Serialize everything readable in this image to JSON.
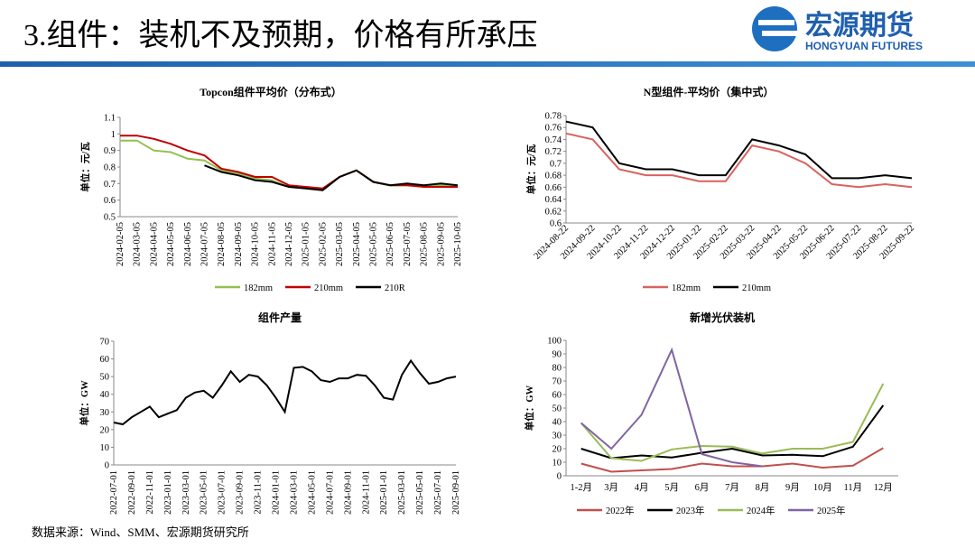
{
  "header": {
    "title": "3.组件：装机不及预期，价格有所承压",
    "logo_cn": "宏源期货",
    "logo_en": "HONGYUAN FUTURES"
  },
  "footer": {
    "source": "数据来源：Wind、SMM、宏源期货研究所"
  },
  "chart_data": [
    {
      "type": "line",
      "title": "Topcon组件平均价（分布式）",
      "y_label": "单位：元/瓦",
      "categories": [
        "2024-02-05",
        "2024-03-05",
        "2024-04-05",
        "2024-05-05",
        "2024-06-05",
        "2024-07-05",
        "2024-08-05",
        "2024-09-05",
        "2024-10-05",
        "2024-11-05",
        "2024-12-05",
        "2025-01-05",
        "2025-02-05",
        "2025-03-05",
        "2025-04-05",
        "2025-05-05",
        "2025-06-05",
        "2025-07-05",
        "2025-08-05",
        "2025-09-05",
        "2025-10-05"
      ],
      "series": [
        {
          "name": "182mm",
          "color": "#92c050",
          "values": [
            0.96,
            0.96,
            0.9,
            0.89,
            0.85,
            0.84,
            0.78,
            0.76,
            0.73,
            0.72,
            0.68,
            0.68,
            0.66,
            0.74,
            0.78,
            0.71,
            0.69,
            0.69,
            0.69,
            0.69,
            0.68
          ]
        },
        {
          "name": "210mm",
          "color": "#c00000",
          "values": [
            0.99,
            0.99,
            0.97,
            0.94,
            0.9,
            0.87,
            0.79,
            0.77,
            0.74,
            0.74,
            0.69,
            0.68,
            0.67,
            0.74,
            0.78,
            0.71,
            0.69,
            0.69,
            0.68,
            0.68,
            0.68
          ]
        },
        {
          "name": "210R",
          "color": "#000000",
          "values": [
            null,
            null,
            null,
            null,
            null,
            0.81,
            0.77,
            0.75,
            0.72,
            0.71,
            0.68,
            0.67,
            0.66,
            0.74,
            0.78,
            0.71,
            0.69,
            0.7,
            0.69,
            0.7,
            0.69
          ]
        }
      ],
      "ylim": [
        0.5,
        1.1
      ],
      "yticks": [
        0.5,
        0.6,
        0.7,
        0.8,
        0.9,
        1,
        1.1
      ],
      "legend": "bottom"
    },
    {
      "type": "line",
      "title": "N型组件-平均价（集中式）",
      "y_label": "单位：元/瓦",
      "categories": [
        "2024-08-22",
        "2024-09-22",
        "2024-10-22",
        "2024-11-22",
        "2024-12-22",
        "2025-01-22",
        "2025-02-22",
        "2025-03-22",
        "2025-04-22",
        "2025-05-22",
        "2025-06-22",
        "2025-07-22",
        "2025-08-22",
        "2025-09-22"
      ],
      "series": [
        {
          "name": "182mm",
          "color": "#d9625e",
          "values": [
            0.75,
            0.74,
            0.69,
            0.68,
            0.68,
            0.67,
            0.67,
            0.73,
            0.72,
            0.7,
            0.665,
            0.66,
            0.665,
            0.66
          ]
        },
        {
          "name": "210mm",
          "color": "#000000",
          "values": [
            0.77,
            0.76,
            0.7,
            0.69,
            0.69,
            0.68,
            0.68,
            0.74,
            0.73,
            0.715,
            0.675,
            0.675,
            0.68,
            0.675
          ]
        }
      ],
      "ylim": [
        0.6,
        0.78
      ],
      "yticks": [
        0.6,
        0.62,
        0.64,
        0.66,
        0.68,
        0.7,
        0.72,
        0.74,
        0.76,
        0.78
      ],
      "legend": "bottom"
    },
    {
      "type": "line",
      "title": "组件产量",
      "y_label": "单位：GW",
      "categories": [
        "2022-07-01",
        null,
        "2022-09-01",
        null,
        "2022-11-01",
        null,
        "2023-01-01",
        null,
        "2023-03-01",
        null,
        "2023-05-01",
        null,
        "2023-07-01",
        null,
        "2023-09-01",
        null,
        "2023-11-01",
        null,
        "2024-01-01",
        null,
        "2024-03-01",
        null,
        "2024-05-01",
        null,
        "2024-07-01",
        null,
        "2024-09-01",
        null,
        "2024-11-01",
        null,
        "2025-01-01",
        null,
        "2025-03-01",
        null,
        "2025-05-01",
        null,
        "2025-07-01",
        null,
        "2025-09-01"
      ],
      "series": [
        {
          "color": "#000000",
          "values": [
            24,
            23,
            27,
            30,
            33,
            27,
            29,
            31,
            38,
            41,
            42,
            38,
            45,
            53,
            47,
            51,
            50,
            45,
            38,
            30,
            55,
            55.5,
            53,
            48,
            47,
            49,
            49,
            51,
            50.5,
            45,
            38,
            37,
            51,
            59,
            52,
            46,
            47,
            49,
            50
          ]
        }
      ],
      "ylim": [
        0,
        70
      ],
      "yticks": [
        0,
        10,
        20,
        30,
        40,
        50,
        60,
        70
      ]
    },
    {
      "type": "line",
      "title": "新增光伏装机",
      "y_label": "单位：GW",
      "categories": [
        "1-2月",
        "3月",
        "4月",
        "5月",
        "6月",
        "7月",
        "8月",
        "9月",
        "10月",
        "11月",
        "12月"
      ],
      "series": [
        {
          "name": "2022年",
          "color": "#c0504d",
          "values": [
            9,
            3,
            4,
            5,
            9,
            7,
            7,
            9,
            6,
            7.5,
            20.5
          ]
        },
        {
          "name": "2023年",
          "color": "#000000",
          "values": [
            20,
            13,
            15,
            13.5,
            17,
            20,
            15,
            15.5,
            14.5,
            21.5,
            52
          ]
        },
        {
          "name": "2024年",
          "color": "#9bbb59",
          "values": [
            39,
            13,
            11,
            19.5,
            22,
            21.5,
            16.5,
            20,
            20,
            25,
            68
          ]
        },
        {
          "name": "2025年",
          "color": "#8064a2",
          "values": [
            39,
            20,
            45,
            93,
            16,
            10,
            7,
            null,
            null,
            null,
            null
          ]
        }
      ],
      "ylim": [
        0,
        100
      ],
      "yticks": [
        0,
        10,
        20,
        30,
        40,
        50,
        60,
        70,
        80,
        90,
        100
      ],
      "legend": "bottom"
    }
  ]
}
